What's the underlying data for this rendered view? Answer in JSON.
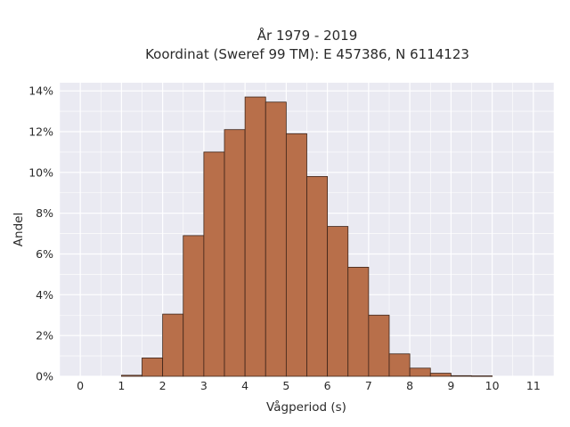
{
  "chart_data": {
    "type": "bar",
    "title_line1": "År 1979 - 2019",
    "title_line2": "Koordinat (Sweref 99 TM): E 457386, N 6114123",
    "xlabel": "Vågperiod (s)",
    "ylabel": "Andel",
    "xlim": [
      -0.5,
      11.5
    ],
    "ylim": [
      0,
      14.4
    ],
    "x_ticks": [
      0,
      1,
      2,
      3,
      4,
      5,
      6,
      7,
      8,
      9,
      10,
      11
    ],
    "x_tick_labels": [
      "0",
      "1",
      "2",
      "3",
      "4",
      "5",
      "6",
      "7",
      "8",
      "9",
      "10",
      "11"
    ],
    "y_ticks": [
      0,
      2,
      4,
      6,
      8,
      10,
      12,
      14
    ],
    "y_tick_labels": [
      "0%",
      "2%",
      "4%",
      "6%",
      "8%",
      "10%",
      "12%",
      "14%"
    ],
    "bin_width": 0.5,
    "bins_start": [
      1.0,
      1.5,
      2.0,
      2.5,
      3.0,
      3.5,
      4.0,
      4.5,
      5.0,
      5.5,
      6.0,
      6.5,
      7.0,
      7.5,
      8.0,
      8.5,
      9.0,
      9.5
    ],
    "values": [
      0.05,
      0.9,
      3.05,
      6.9,
      11.0,
      12.1,
      13.7,
      13.45,
      11.9,
      9.8,
      7.35,
      5.35,
      3.0,
      1.1,
      0.4,
      0.15,
      0.03,
      0.02
    ],
    "grid": true,
    "colors": {
      "bar_fill": "#b86f4a",
      "bar_edge": "#3d2418",
      "plot_background": "#eaeaf2",
      "grid": "#ffffff"
    }
  }
}
